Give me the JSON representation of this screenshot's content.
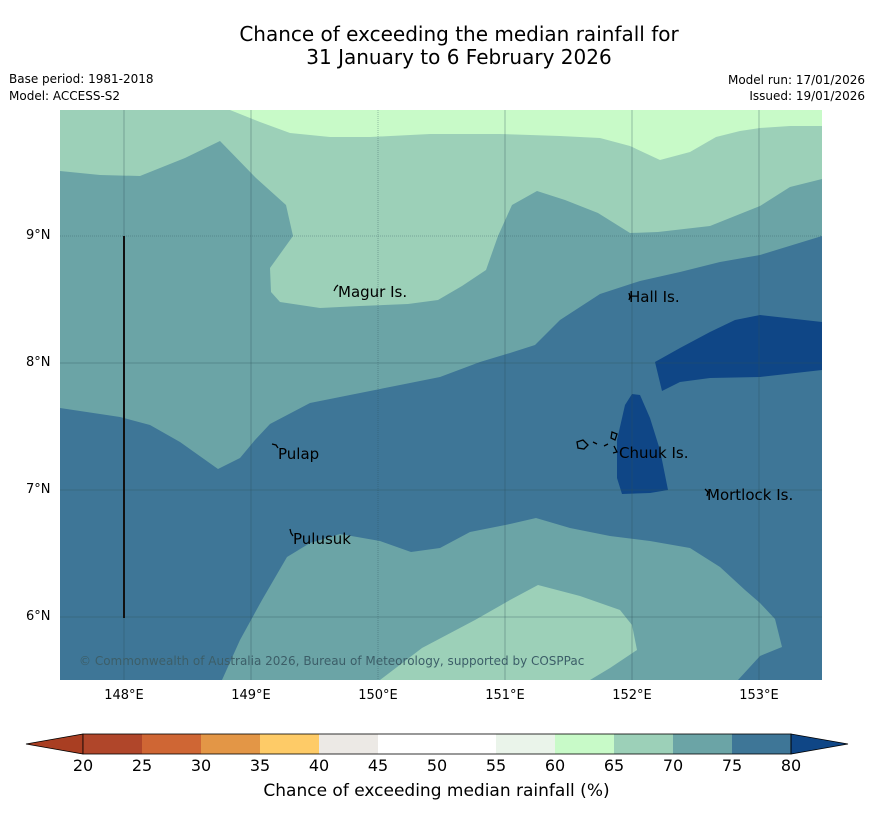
{
  "header": {
    "title_line1": "Chance of exceeding the median rainfall for",
    "title_line2": "31 January to 6 February 2026",
    "base_period": "Base period: 1981-2018",
    "model": "Model: ACCESS-S2",
    "model_run": "Model run: 17/01/2026",
    "issued": "Issued: 19/01/2026"
  },
  "map": {
    "lat_labels": [
      "9°N",
      "8°N",
      "7°N",
      "6°N"
    ],
    "lon_labels": [
      "148°E",
      "149°E",
      "150°E",
      "151°E",
      "152°E",
      "153°E"
    ],
    "places": [
      "Magur Is.",
      "Hall Is.",
      "Pulap",
      "Chuuk Is.",
      "Mortlock Is.",
      "Pulusuk"
    ],
    "copyright": "© Commonwealth of Australia 2026, Bureau of Meteorology, supported by COSPPac",
    "band_colors": {
      "c55_60": "#eaf4ea",
      "c60_65": "#c8fac8",
      "c65_70": "#9cd0b8",
      "c70_75": "#6ba4a6",
      "c75_80": "#3e7697",
      "c80_plus": "#0f4686"
    }
  },
  "colorbar": {
    "label": "Chance of exceeding median rainfall (%)",
    "ticks": [
      "20",
      "25",
      "30",
      "35",
      "40",
      "45",
      "50",
      "55",
      "60",
      "65",
      "70",
      "75",
      "80"
    ],
    "colors": [
      "#a93e22",
      "#b0462a",
      "#cf6634",
      "#e39646",
      "#fecb67",
      "#ece9e5",
      "#ffffff",
      "#ffffff",
      "#eaf4ea",
      "#c8fac8",
      "#9cd0b8",
      "#6ba4a6",
      "#3e7697",
      "#0f4686"
    ]
  }
}
